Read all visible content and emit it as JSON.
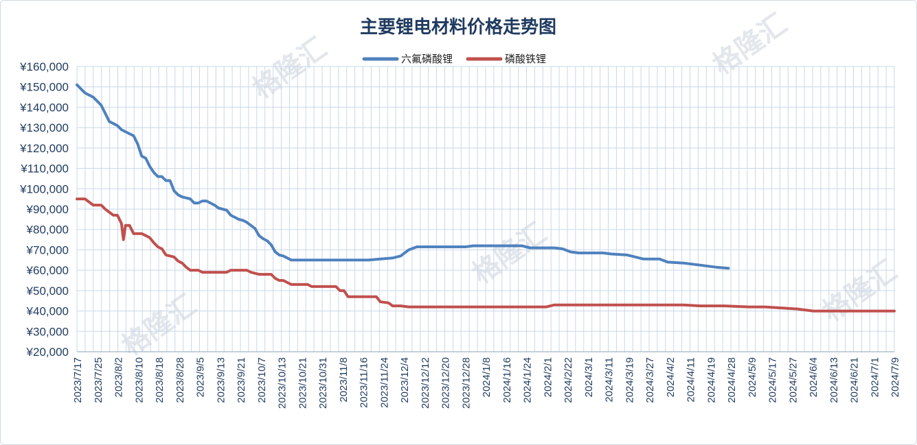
{
  "colors": {
    "lifp6": "#4f81bd",
    "lfp": "#c0504d",
    "grid": "#c9d7e8",
    "text": "#1f3a5f"
  },
  "watermark": "格隆汇",
  "chart_data": {
    "type": "line",
    "title": "主要锂电材料价格走势图",
    "xlabel": "",
    "ylabel": "",
    "ylim": [
      20000,
      160000
    ],
    "yticks": [
      20000,
      30000,
      40000,
      50000,
      60000,
      70000,
      80000,
      90000,
      100000,
      110000,
      120000,
      130000,
      140000,
      150000,
      160000
    ],
    "ytick_labels": [
      "¥20,000",
      "¥30,000",
      "¥40,000",
      "¥50,000",
      "¥60,000",
      "¥70,000",
      "¥80,000",
      "¥90,000",
      "¥100,000",
      "¥110,000",
      "¥120,000",
      "¥130,000",
      "¥140,000",
      "¥150,000",
      "¥160,000"
    ],
    "categories": [
      "2023/7/17",
      "2023/7/25",
      "2023/8/2",
      "2023/8/10",
      "2023/8/18",
      "2023/8/28",
      "2023/9/5",
      "2023/9/13",
      "2023/9/21",
      "2023/10/7",
      "2023/10/13",
      "2023/10/21",
      "2023/10/31",
      "2023/11/8",
      "2023/11/16",
      "2023/11/24",
      "2023/12/4",
      "2023/12/12",
      "2023/12/20",
      "2023/12/28",
      "2024/1/8",
      "2024/1/16",
      "2024/1/24",
      "2024/2/1",
      "2024/2/22",
      "2024/3/1",
      "2024/3/11",
      "2024/3/19",
      "2024/3/27",
      "2024/4/2",
      "2024/4/11",
      "2024/4/19",
      "2024/4/28",
      "2024/5/9",
      "2024/5/17",
      "2024/5/27",
      "2024/6/4",
      "2024/6/13",
      "2024/6/21",
      "2024/7/1",
      "2024/7/9"
    ],
    "grid": true,
    "legend_position": "top-center",
    "series": [
      {
        "name": "六氟磷酸锂",
        "color": "#4f81bd",
        "points": [
          [
            0,
            151000
          ],
          [
            1,
            149000
          ],
          [
            2,
            147000
          ],
          [
            3,
            146000
          ],
          [
            4,
            145000
          ],
          [
            5,
            143000
          ],
          [
            6,
            141000
          ],
          [
            7,
            137000
          ],
          [
            8,
            133000
          ],
          [
            9,
            132000
          ],
          [
            10,
            131000
          ],
          [
            11,
            129000
          ],
          [
            12,
            128000
          ],
          [
            13,
            127000
          ],
          [
            14,
            126000
          ],
          [
            15,
            122000
          ],
          [
            16,
            116000
          ],
          [
            17,
            115000
          ],
          [
            18,
            111000
          ],
          [
            19,
            108000
          ],
          [
            20,
            106000
          ],
          [
            21,
            106000
          ],
          [
            22,
            104000
          ],
          [
            23,
            104000
          ],
          [
            24,
            99000
          ],
          [
            25,
            97000
          ],
          [
            26,
            96000
          ],
          [
            27,
            95500
          ],
          [
            28,
            95000
          ],
          [
            29,
            93000
          ],
          [
            30,
            93000
          ],
          [
            31,
            94000
          ],
          [
            32,
            94000
          ],
          [
            33,
            93000
          ],
          [
            34,
            92000
          ],
          [
            35,
            90500
          ],
          [
            36,
            90000
          ],
          [
            37,
            89500
          ],
          [
            38,
            87000
          ],
          [
            39,
            86000
          ],
          [
            40,
            85000
          ],
          [
            41,
            84500
          ],
          [
            42,
            83500
          ],
          [
            43,
            82000
          ],
          [
            44,
            80500
          ],
          [
            45,
            77000
          ],
          [
            46,
            75500
          ],
          [
            47,
            74500
          ],
          [
            48,
            72500
          ],
          [
            49,
            69000
          ],
          [
            50,
            67500
          ],
          [
            51,
            67000
          ],
          [
            52,
            66000
          ],
          [
            53,
            65000
          ],
          [
            54,
            65000
          ],
          [
            60,
            65000
          ],
          [
            66,
            65000
          ],
          [
            72,
            65000
          ],
          [
            75,
            65500
          ],
          [
            78,
            66000
          ],
          [
            80,
            67000
          ],
          [
            82,
            70000
          ],
          [
            84,
            71500
          ],
          [
            90,
            71500
          ],
          [
            96,
            71500
          ],
          [
            98,
            72000
          ],
          [
            104,
            72000
          ],
          [
            110,
            72000
          ],
          [
            112,
            71000
          ],
          [
            118,
            71000
          ],
          [
            120,
            70500
          ],
          [
            122,
            69000
          ],
          [
            124,
            68500
          ],
          [
            130,
            68500
          ],
          [
            132,
            68000
          ],
          [
            136,
            67500
          ],
          [
            138,
            66500
          ],
          [
            140,
            65500
          ],
          [
            144,
            65500
          ],
          [
            146,
            64000
          ],
          [
            150,
            63500
          ],
          [
            152,
            63000
          ],
          [
            156,
            62000
          ],
          [
            158,
            61500
          ],
          [
            161,
            61000
          ]
        ]
      },
      {
        "name": "磷酸铁锂",
        "color": "#c0504d",
        "points": [
          [
            0,
            95000
          ],
          [
            2,
            95000
          ],
          [
            4,
            92000
          ],
          [
            6,
            92000
          ],
          [
            7,
            90000
          ],
          [
            8,
            88500
          ],
          [
            9,
            87000
          ],
          [
            10,
            87000
          ],
          [
            11,
            83000
          ],
          [
            11.5,
            75000
          ],
          [
            12,
            82000
          ],
          [
            13,
            82000
          ],
          [
            14,
            78000
          ],
          [
            16,
            78000
          ],
          [
            17,
            77000
          ],
          [
            18,
            76000
          ],
          [
            19,
            73500
          ],
          [
            20,
            71500
          ],
          [
            21,
            70500
          ],
          [
            22,
            67500
          ],
          [
            23,
            67000
          ],
          [
            24,
            66500
          ],
          [
            25,
            64500
          ],
          [
            26,
            63500
          ],
          [
            27,
            61500
          ],
          [
            28,
            60000
          ],
          [
            30,
            60000
          ],
          [
            31,
            59000
          ],
          [
            34,
            59000
          ],
          [
            37,
            59000
          ],
          [
            38,
            60000
          ],
          [
            42,
            60000
          ],
          [
            43,
            59000
          ],
          [
            45,
            58000
          ],
          [
            48,
            58000
          ],
          [
            49,
            56000
          ],
          [
            50,
            55000
          ],
          [
            51,
            55000
          ],
          [
            52,
            54000
          ],
          [
            53,
            53000
          ],
          [
            57,
            53000
          ],
          [
            58,
            52000
          ],
          [
            62,
            52000
          ],
          [
            64,
            52000
          ],
          [
            65,
            50000
          ],
          [
            66,
            50000
          ],
          [
            67,
            47000
          ],
          [
            72,
            47000
          ],
          [
            74,
            47000
          ],
          [
            75,
            44500
          ],
          [
            77,
            44000
          ],
          [
            78,
            42500
          ],
          [
            80,
            42500
          ],
          [
            82,
            42000
          ],
          [
            90,
            42000
          ],
          [
            100,
            42000
          ],
          [
            110,
            42000
          ],
          [
            116,
            42000
          ],
          [
            118,
            43000
          ],
          [
            130,
            43000
          ],
          [
            140,
            43000
          ],
          [
            150,
            43000
          ],
          [
            154,
            42500
          ],
          [
            160,
            42500
          ],
          [
            166,
            42000
          ],
          [
            170,
            42000
          ],
          [
            174,
            41500
          ],
          [
            178,
            41000
          ],
          [
            180,
            40500
          ],
          [
            182,
            40000
          ],
          [
            190,
            40000
          ],
          [
            200,
            40000
          ],
          [
            202,
            40000
          ]
        ]
      }
    ]
  }
}
